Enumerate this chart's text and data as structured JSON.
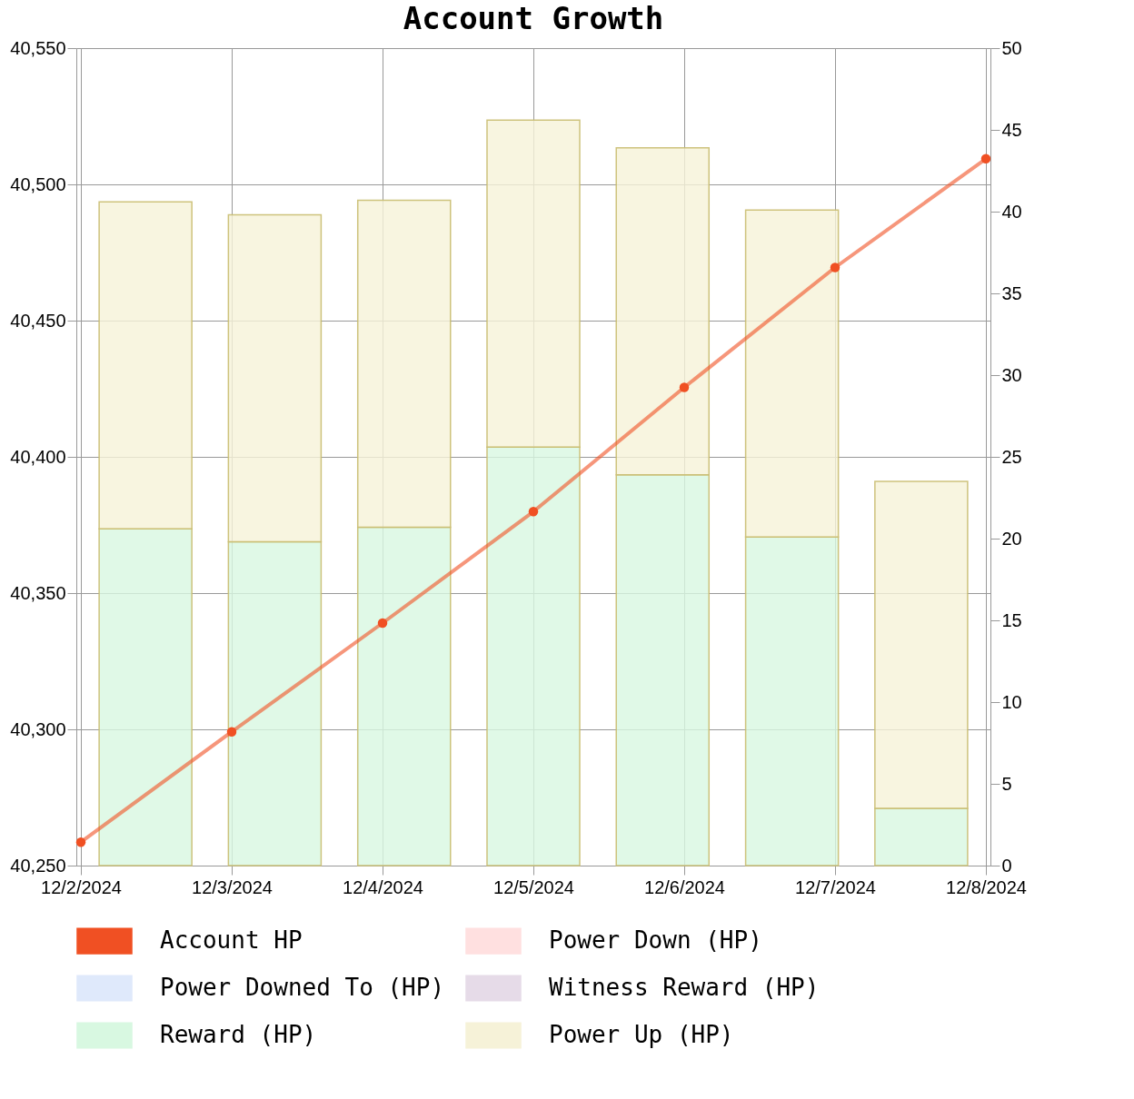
{
  "chart_data": {
    "type": "bar",
    "title": "Account Growth",
    "x": [
      "2024-12-02T10:17",
      "2024-12-03T06:51",
      "2024-12-04T03:26",
      "2024-12-05T00:00",
      "2024-12-05T20:34",
      "2024-12-06T17:09",
      "2024-12-07T13:43"
    ],
    "stacked": true,
    "series": [
      {
        "name": "Account HP",
        "type": "line",
        "color": "#f05023",
        "x": [
          "2024-12-02",
          "2024-12-03",
          "2024-12-04",
          "2024-12-05",
          "2024-12-06",
          "2024-12-07",
          "2024-12-08"
        ],
        "values": [
          40258.6,
          40299.1,
          40339.0,
          40379.9,
          40425.5,
          40469.5,
          40509.4
        ]
      },
      {
        "name": "Power Down (HP)",
        "color": "#ffe0e0",
        "axis": "y2",
        "values": [
          null,
          null,
          null,
          null,
          null,
          null,
          null
        ]
      },
      {
        "name": "Power Downed To (HP)",
        "color": "#dfe9fb",
        "axis": "y2",
        "values": [
          null,
          null,
          null,
          null,
          null,
          null,
          null
        ]
      },
      {
        "name": "Witness Reward (HP)",
        "color": "#e6dbe8",
        "axis": "y2",
        "values": [
          null,
          null,
          null,
          null,
          null,
          null,
          null
        ]
      },
      {
        "name": "Reward (HP)",
        "color": "#d8f8e1",
        "axis": "y2",
        "values": [
          20.6,
          19.8,
          20.7,
          25.6,
          23.9,
          20.1,
          3.5
        ]
      },
      {
        "name": "Power Up (HP)",
        "color": "#f6f2d8",
        "axis": "y2",
        "values": [
          20.0,
          20.0,
          20.0,
          20.0,
          20.0,
          20.0,
          20.0
        ]
      }
    ],
    "xlim": [
      "2024-12-02",
      "2024-12-08"
    ],
    "xticks": [
      {
        "value": "2024-12-02",
        "label": "12/2/2024"
      },
      {
        "value": "2024-12-03",
        "label": "12/3/2024"
      },
      {
        "value": "2024-12-04",
        "label": "12/4/2024"
      },
      {
        "value": "2024-12-05",
        "label": "12/5/2024"
      },
      {
        "value": "2024-12-06",
        "label": "12/6/2024"
      },
      {
        "value": "2024-12-07",
        "label": "12/7/2024"
      },
      {
        "value": "2024-12-08",
        "label": "12/8/2024"
      }
    ],
    "ylim": [
      40250,
      40550
    ],
    "yticks": [
      {
        "value": 40250,
        "label": "40,250"
      },
      {
        "value": 40300,
        "label": "40,300"
      },
      {
        "value": 40350,
        "label": "40,350"
      },
      {
        "value": 40400,
        "label": "40,400"
      },
      {
        "value": 40450,
        "label": "40,450"
      },
      {
        "value": 40500,
        "label": "40,500"
      },
      {
        "value": 40550,
        "label": "40,550"
      }
    ],
    "y2lim": [
      0,
      50
    ],
    "y2ticks": [
      0,
      5,
      10,
      15,
      20,
      25,
      30,
      35,
      40,
      45,
      50
    ],
    "grid": true,
    "legend": "bottom",
    "marker": "circle",
    "line_style": "solid"
  }
}
